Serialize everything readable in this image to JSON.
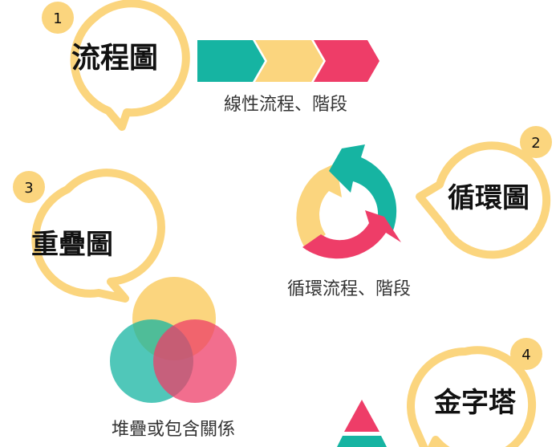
{
  "colors": {
    "teal": "#16b4a2",
    "yellow": "#fbd57e",
    "pink": "#ee3d68",
    "badge_ring": "#fbd57e",
    "text_dark": "#111111",
    "caption_text": "#333333"
  },
  "items": [
    {
      "number": "1",
      "title": "流程圖",
      "caption": "線性流程、階段",
      "icon": "chevron-arrows-icon"
    },
    {
      "number": "2",
      "title": "循環圖",
      "caption": "循環流程、階段",
      "icon": "cycle-arrows-icon"
    },
    {
      "number": "3",
      "title": "重疊圖",
      "caption": "堆疊或包含關係",
      "icon": "venn-circles-icon"
    },
    {
      "number": "4",
      "title": "金字塔",
      "caption": "",
      "icon": "pyramid-icon"
    }
  ]
}
